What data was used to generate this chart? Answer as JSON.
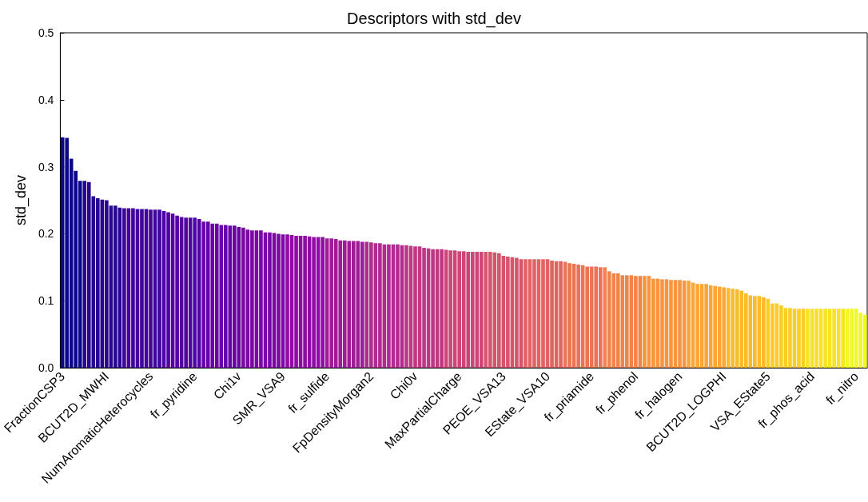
{
  "chart_data": {
    "type": "bar",
    "title": "Descriptors with std_dev",
    "ylabel": "std_dev",
    "categories": [
      "FractionCSP3",
      null,
      null,
      null,
      null,
      null,
      null,
      null,
      null,
      null,
      "BCUT2D_MWHI",
      null,
      null,
      null,
      null,
      null,
      null,
      null,
      null,
      null,
      "NumAromaticHeterocycles",
      null,
      null,
      null,
      null,
      null,
      null,
      null,
      null,
      null,
      "fr_pyridine",
      null,
      null,
      null,
      null,
      null,
      null,
      null,
      null,
      null,
      "Chi1v",
      null,
      null,
      null,
      null,
      null,
      null,
      null,
      null,
      null,
      "SMR_VSA9",
      null,
      null,
      null,
      null,
      null,
      null,
      null,
      null,
      null,
      "fr_sulfide",
      null,
      null,
      null,
      null,
      null,
      null,
      null,
      null,
      null,
      "FpDensityMorgan2",
      null,
      null,
      null,
      null,
      null,
      null,
      null,
      null,
      null,
      "Chi0v",
      null,
      null,
      null,
      null,
      null,
      null,
      null,
      null,
      null,
      "MaxPartialCharge",
      null,
      null,
      null,
      null,
      null,
      null,
      null,
      null,
      null,
      "PEOE_VSA13",
      null,
      null,
      null,
      null,
      null,
      null,
      null,
      null,
      null,
      "EState_VSA10",
      null,
      null,
      null,
      null,
      null,
      null,
      null,
      null,
      null,
      "fr_priamide",
      null,
      null,
      null,
      null,
      null,
      null,
      null,
      null,
      null,
      "fr_phenol",
      null,
      null,
      null,
      null,
      null,
      null,
      null,
      null,
      null,
      "fr_halogen",
      null,
      null,
      null,
      null,
      null,
      null,
      null,
      null,
      null,
      "BCUT2D_LOGPHI",
      null,
      null,
      null,
      null,
      null,
      null,
      null,
      null,
      null,
      "VSA_EState5",
      null,
      null,
      null,
      null,
      null,
      null,
      null,
      null,
      null,
      "fr_phos_acid",
      null,
      null,
      null,
      null,
      null,
      null,
      null,
      null,
      null,
      "fr_nitro",
      null,
      null
    ],
    "values": [
      0.344,
      0.343,
      0.312,
      0.294,
      0.279,
      0.279,
      0.277,
      0.256,
      0.253,
      0.251,
      0.25,
      0.242,
      0.242,
      0.239,
      0.238,
      0.238,
      0.238,
      0.237,
      0.237,
      0.237,
      0.236,
      0.236,
      0.236,
      0.234,
      0.232,
      0.23,
      0.227,
      0.225,
      0.224,
      0.224,
      0.224,
      0.222,
      0.218,
      0.218,
      0.215,
      0.215,
      0.213,
      0.213,
      0.212,
      0.212,
      0.21,
      0.209,
      0.206,
      0.205,
      0.205,
      0.205,
      0.202,
      0.202,
      0.201,
      0.2,
      0.199,
      0.199,
      0.198,
      0.197,
      0.197,
      0.197,
      0.196,
      0.195,
      0.195,
      0.195,
      0.193,
      0.193,
      0.192,
      0.19,
      0.19,
      0.189,
      0.189,
      0.189,
      0.188,
      0.188,
      0.187,
      0.186,
      0.186,
      0.184,
      0.184,
      0.184,
      0.184,
      0.183,
      0.183,
      0.182,
      0.181,
      0.181,
      0.179,
      0.178,
      0.177,
      0.177,
      0.177,
      0.176,
      0.175,
      0.175,
      0.174,
      0.174,
      0.173,
      0.173,
      0.173,
      0.173,
      0.173,
      0.173,
      0.172,
      0.171,
      0.167,
      0.166,
      0.165,
      0.164,
      0.162,
      0.162,
      0.162,
      0.162,
      0.162,
      0.162,
      0.162,
      0.16,
      0.159,
      0.159,
      0.158,
      0.156,
      0.155,
      0.154,
      0.153,
      0.151,
      0.151,
      0.151,
      0.15,
      0.15,
      0.144,
      0.141,
      0.141,
      0.138,
      0.138,
      0.138,
      0.137,
      0.137,
      0.137,
      0.137,
      0.133,
      0.133,
      0.132,
      0.132,
      0.131,
      0.131,
      0.131,
      0.13,
      0.13,
      0.127,
      0.125,
      0.125,
      0.125,
      0.123,
      0.122,
      0.121,
      0.12,
      0.119,
      0.118,
      0.117,
      0.115,
      0.111,
      0.108,
      0.107,
      0.107,
      0.105,
      0.103,
      0.096,
      0.096,
      0.093,
      0.089,
      0.089,
      0.088,
      0.088,
      0.088,
      0.088,
      0.088,
      0.088,
      0.088,
      0.088,
      0.088,
      0.088,
      0.088,
      0.088,
      0.088,
      0.088,
      0.088,
      0.082,
      0.079
    ],
    "colors": [
      "#0d0887",
      "#0d0887",
      "#0d0887",
      "#0d0887",
      "#0d0887",
      "#270692",
      "#270692",
      "#270692",
      "#270692",
      "#270692",
      "#270692",
      "#270692",
      "#270692",
      "#270692",
      "#41049d",
      "#41049d",
      "#41049d",
      "#41049d",
      "#41049d",
      "#41049d",
      "#41049d",
      "#41049d",
      "#41049d",
      "#5502a2",
      "#5502a2",
      "#5502a2",
      "#5502a2",
      "#5502a2",
      "#5502a2",
      "#5502a2",
      "#5502a2",
      "#5502a2",
      "#6a00a8",
      "#6a00a8",
      "#6a00a8",
      "#6a00a8",
      "#6a00a8",
      "#6a00a8",
      "#6a00a8",
      "#6a00a8",
      "#6a00a8",
      "#7c06a6",
      "#7c06a6",
      "#7c06a6",
      "#7c06a6",
      "#7c06a6",
      "#7c06a6",
      "#7c06a6",
      "#7c06a6",
      "#7c06a6",
      "#7c06a6",
      "#8f0da4",
      "#8f0da4",
      "#8f0da4",
      "#8f0da4",
      "#8f0da4",
      "#8f0da4",
      "#8f0da4",
      "#8f0da4",
      "#8f0da4",
      "#a01b9a",
      "#a01b9a",
      "#a01b9a",
      "#a01b9a",
      "#a01b9a",
      "#a01b9a",
      "#a01b9a",
      "#a01b9a",
      "#a01b9a",
      "#b12a90",
      "#b12a90",
      "#b12a90",
      "#b12a90",
      "#b12a90",
      "#b12a90",
      "#b12a90",
      "#b12a90",
      "#b12a90",
      "#be3884",
      "#be3884",
      "#be3884",
      "#be3884",
      "#be3884",
      "#be3884",
      "#be3884",
      "#be3884",
      "#be3884",
      "#cc4778",
      "#cc4778",
      "#cc4778",
      "#cc4778",
      "#cc4778",
      "#cc4778",
      "#cc4778",
      "#cc4778",
      "#cc4778",
      "#d6556d",
      "#d6556d",
      "#d6556d",
      "#d6556d",
      "#d6556d",
      "#d6556d",
      "#d6556d",
      "#d6556d",
      "#d6556d",
      "#e16462",
      "#e16462",
      "#e16462",
      "#e16462",
      "#e16462",
      "#e16462",
      "#e16462",
      "#e16462",
      "#e16462",
      "#e97456",
      "#e97456",
      "#e97456",
      "#e97456",
      "#e97456",
      "#e97456",
      "#e97456",
      "#e97456",
      "#e97456",
      "#f2844b",
      "#f2844b",
      "#f2844b",
      "#f2844b",
      "#f2844b",
      "#f2844b",
      "#f2844b",
      "#f2844b",
      "#f2844b",
      "#f79540",
      "#f79540",
      "#f79540",
      "#f79540",
      "#f79540",
      "#f79540",
      "#f79540",
      "#f79540",
      "#f79540",
      "#f79540",
      "#fca636",
      "#fca636",
      "#fca636",
      "#fca636",
      "#fca636",
      "#fca636",
      "#fca636",
      "#fca636",
      "#fca636",
      "#fcba2d",
      "#fcba2d",
      "#fcba2d",
      "#fcba2d",
      "#fcba2d",
      "#fcba2d",
      "#fcba2d",
      "#fcba2d",
      "#fcba2d",
      "#fcce25",
      "#fcce25",
      "#fcce25",
      "#fcce25",
      "#fcce25",
      "#fcce25",
      "#fcce25",
      "#fcce25",
      "#fcce25",
      "#f6e323",
      "#f6e323",
      "#f6e323",
      "#f6e323",
      "#f6e323",
      "#f6e323",
      "#f6e323",
      "#f6e323",
      "#f6e323",
      "#f0f921",
      "#f0f921",
      "#f0f921",
      "#f0f921",
      "#f0f921"
    ],
    "ylim": [
      0,
      0.5
    ],
    "yticks": [
      {
        "value": 0,
        "label": "0.0"
      },
      {
        "value": 0.1,
        "label": "0.1"
      },
      {
        "value": 0.2,
        "label": "0.2"
      },
      {
        "value": 0.3,
        "label": "0.3"
      },
      {
        "value": 0.4,
        "label": "0.4"
      },
      {
        "value": 0.5,
        "label": "0.5"
      }
    ]
  }
}
